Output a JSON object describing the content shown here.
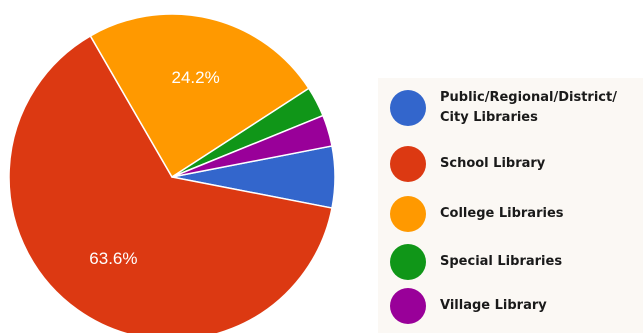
{
  "chart_data": {
    "type": "pie",
    "title": "",
    "categories": [
      "Public/Regional/District/ City Libraries",
      "School Library",
      "College Libraries",
      "Special Libraries",
      "Village Library"
    ],
    "values": [
      6.1,
      63.6,
      24.2,
      3.0,
      3.1
    ],
    "value_labels": [
      "",
      "63.6%",
      "24.2%",
      "",
      ""
    ],
    "colors": [
      "#3366cc",
      "#dc3912",
      "#ff9900",
      "#109618",
      "#990099"
    ],
    "legend": "right"
  }
}
